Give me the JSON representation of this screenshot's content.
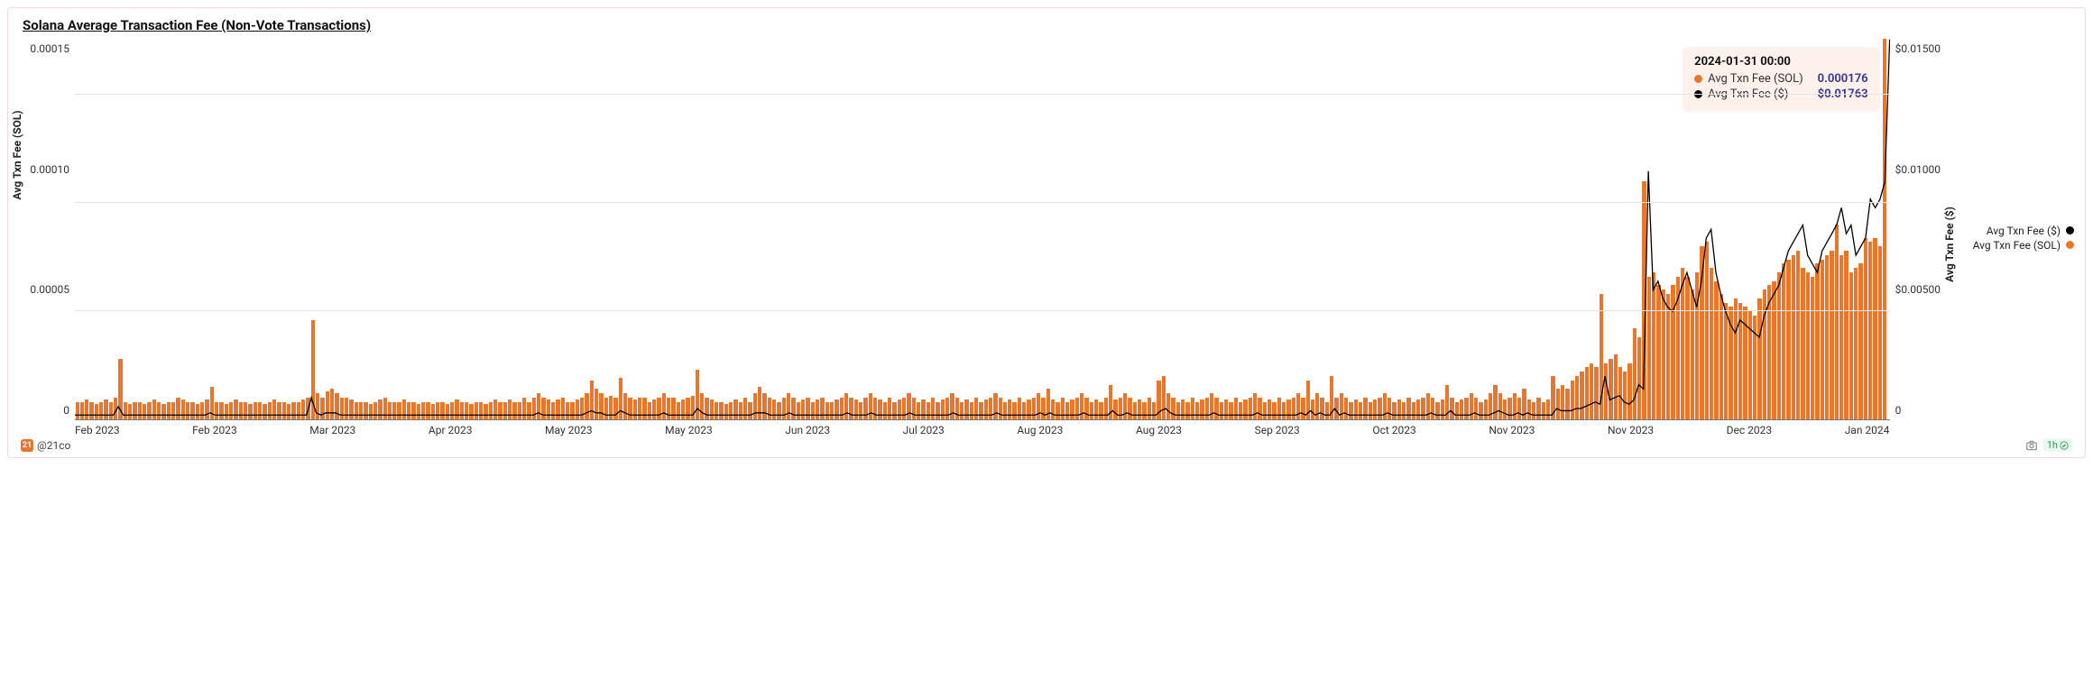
{
  "title": "Solana Average Transaction Fee (Non-Vote Transactions)",
  "author_handle": "@21co",
  "refresh_label": "1h",
  "chart": {
    "type": "bar+line",
    "background_color": "#ffffff",
    "grid_color": "#e5e5e5",
    "bar_color": "#e8762c",
    "line_color": "#000000",
    "line_width": 1.3,
    "left_axis": {
      "label": "Avg Txn Fee (SOL)",
      "min": 0,
      "max": 0.000176,
      "ticks": [
        0.00015,
        0.0001,
        5e-05,
        0
      ]
    },
    "right_axis": {
      "label": "Avg Txn Fee ($)",
      "min": 0,
      "max": 0.01763,
      "ticks": [
        "$0.01500",
        "$0.01000",
        "$0.00500",
        "0"
      ]
    },
    "x_ticks": [
      "Feb 2023",
      "Feb 2023",
      "Mar 2023",
      "Apr 2023",
      "May 2023",
      "May 2023",
      "Jun 2023",
      "Jul 2023",
      "Aug 2023",
      "Aug 2023",
      "Sep 2023",
      "Oct 2023",
      "Nov 2023",
      "Nov 2023",
      "Dec 2023",
      "Jan 2024"
    ],
    "series_bar_1e6": [
      8,
      8,
      9,
      8,
      7,
      8,
      9,
      8,
      10,
      28,
      8,
      7,
      8,
      8,
      7,
      8,
      9,
      8,
      7,
      8,
      8,
      10,
      9,
      8,
      8,
      7,
      8,
      9,
      15,
      8,
      8,
      7,
      8,
      9,
      8,
      8,
      7,
      8,
      8,
      7,
      8,
      9,
      8,
      8,
      7,
      8,
      8,
      9,
      10,
      46,
      12,
      10,
      13,
      14,
      12,
      10,
      10,
      9,
      8,
      8,
      8,
      7,
      8,
      9,
      10,
      8,
      8,
      8,
      9,
      8,
      8,
      7,
      8,
      8,
      7,
      8,
      8,
      7,
      8,
      9,
      8,
      8,
      7,
      8,
      8,
      7,
      8,
      9,
      8,
      8,
      9,
      8,
      8,
      10,
      8,
      10,
      12,
      10,
      9,
      8,
      9,
      10,
      8,
      8,
      9,
      10,
      12,
      18,
      14,
      12,
      10,
      11,
      10,
      19,
      12,
      10,
      9,
      10,
      10,
      8,
      9,
      10,
      12,
      10,
      10,
      8,
      9,
      10,
      11,
      23,
      12,
      10,
      9,
      8,
      8,
      7,
      8,
      9,
      8,
      10,
      8,
      12,
      15,
      12,
      10,
      9,
      8,
      10,
      12,
      10,
      8,
      9,
      10,
      8,
      9,
      10,
      8,
      8,
      9,
      10,
      12,
      10,
      9,
      8,
      10,
      12,
      10,
      9,
      8,
      10,
      8,
      9,
      10,
      12,
      10,
      8,
      9,
      8,
      10,
      8,
      9,
      10,
      12,
      10,
      8,
      9,
      8,
      10,
      8,
      9,
      10,
      12,
      10,
      8,
      9,
      8,
      10,
      8,
      9,
      10,
      12,
      10,
      14,
      9,
      8,
      10,
      8,
      9,
      10,
      12,
      10,
      8,
      9,
      8,
      10,
      16,
      9,
      10,
      12,
      10,
      8,
      9,
      8,
      10,
      8,
      18,
      20,
      12,
      10,
      8,
      9,
      8,
      10,
      8,
      9,
      10,
      12,
      10,
      8,
      9,
      8,
      10,
      8,
      9,
      10,
      12,
      10,
      8,
      9,
      8,
      10,
      8,
      9,
      10,
      12,
      10,
      18,
      9,
      12,
      10,
      8,
      20,
      10,
      12,
      10,
      8,
      9,
      8,
      10,
      8,
      9,
      10,
      12,
      10,
      8,
      9,
      8,
      10,
      8,
      9,
      10,
      12,
      10,
      8,
      9,
      16,
      10,
      8,
      9,
      10,
      12,
      10,
      8,
      9,
      12,
      16,
      12,
      9,
      10,
      12,
      10,
      14,
      9,
      8,
      10,
      8,
      9,
      20,
      14,
      16,
      14,
      18,
      20,
      22,
      24,
      26,
      24,
      58,
      26,
      28,
      30,
      24,
      22,
      26,
      42,
      38,
      110,
      66,
      68,
      62,
      60,
      58,
      62,
      66,
      70,
      66,
      60,
      68,
      80,
      82,
      70,
      64,
      58,
      54,
      52,
      56,
      54,
      52,
      50,
      48,
      56,
      60,
      62,
      64,
      68,
      72,
      74,
      76,
      78,
      70,
      68,
      66,
      72,
      74,
      76,
      78,
      90,
      76,
      78,
      68,
      70,
      72,
      84,
      82,
      84,
      80,
      176
    ],
    "series_line_usd_1e4": [
      2,
      2,
      2,
      2,
      2,
      2,
      2,
      2,
      2,
      6,
      2,
      2,
      2,
      2,
      2,
      2,
      2,
      2,
      2,
      2,
      2,
      2,
      2,
      2,
      2,
      2,
      2,
      2,
      3,
      2,
      2,
      2,
      2,
      2,
      2,
      2,
      2,
      2,
      2,
      2,
      2,
      2,
      2,
      2,
      2,
      2,
      2,
      2,
      2,
      10,
      3,
      2,
      3,
      3,
      3,
      2,
      2,
      2,
      2,
      2,
      2,
      2,
      2,
      2,
      2,
      2,
      2,
      2,
      2,
      2,
      2,
      2,
      2,
      2,
      2,
      2,
      2,
      2,
      2,
      2,
      2,
      2,
      2,
      2,
      2,
      2,
      2,
      2,
      2,
      2,
      2,
      2,
      2,
      2,
      2,
      2,
      3,
      2,
      2,
      2,
      2,
      2,
      2,
      2,
      2,
      2,
      3,
      4,
      3,
      3,
      2,
      2,
      2,
      4,
      3,
      2,
      2,
      2,
      2,
      2,
      2,
      2,
      3,
      2,
      2,
      2,
      2,
      2,
      2,
      5,
      3,
      2,
      2,
      2,
      2,
      2,
      2,
      2,
      2,
      2,
      2,
      3,
      3,
      3,
      2,
      2,
      2,
      2,
      3,
      2,
      2,
      2,
      2,
      2,
      2,
      2,
      2,
      2,
      2,
      2,
      3,
      2,
      2,
      2,
      2,
      3,
      2,
      2,
      2,
      2,
      2,
      2,
      2,
      3,
      2,
      2,
      2,
      2,
      2,
      2,
      2,
      2,
      3,
      2,
      2,
      2,
      2,
      2,
      2,
      2,
      2,
      3,
      2,
      2,
      2,
      2,
      2,
      2,
      2,
      2,
      3,
      2,
      3,
      2,
      2,
      2,
      2,
      2,
      2,
      3,
      2,
      2,
      2,
      2,
      2,
      4,
      2,
      2,
      3,
      2,
      2,
      2,
      2,
      2,
      2,
      4,
      5,
      3,
      2,
      2,
      2,
      2,
      2,
      2,
      2,
      2,
      3,
      2,
      2,
      2,
      2,
      2,
      2,
      2,
      2,
      3,
      2,
      2,
      2,
      2,
      2,
      2,
      2,
      2,
      3,
      2,
      4,
      2,
      3,
      2,
      2,
      5,
      2,
      3,
      2,
      2,
      2,
      2,
      2,
      2,
      2,
      2,
      3,
      2,
      2,
      2,
      2,
      2,
      2,
      2,
      2,
      3,
      2,
      2,
      2,
      4,
      2,
      2,
      2,
      2,
      3,
      2,
      2,
      2,
      3,
      4,
      3,
      2,
      2,
      3,
      2,
      3,
      2,
      2,
      2,
      2,
      2,
      5,
      4,
      4,
      4,
      5,
      5,
      6,
      7,
      8,
      7,
      20,
      9,
      10,
      11,
      8,
      7,
      9,
      16,
      14,
      115,
      60,
      64,
      56,
      52,
      50,
      55,
      62,
      68,
      60,
      52,
      64,
      84,
      88,
      68,
      58,
      50,
      44,
      40,
      46,
      44,
      42,
      40,
      38,
      48,
      54,
      58,
      62,
      70,
      78,
      82,
      86,
      90,
      76,
      72,
      68,
      78,
      82,
      86,
      90,
      98,
      86,
      90,
      76,
      80,
      84,
      102,
      98,
      102,
      110,
      176
    ]
  },
  "tooltip": {
    "date": "2024-01-31 00:00",
    "rows": [
      {
        "label": "Avg Txn Fee (SOL)",
        "value": "0.000176",
        "dot_color": "#e8762c"
      },
      {
        "label": "Avg Txn Fee ($)",
        "value": "$0.01763",
        "dot_color": "#000000"
      }
    ]
  },
  "legend": [
    {
      "label": "Avg Txn Fee ($)",
      "color": "#000000"
    },
    {
      "label": "Avg Txn Fee (SOL)",
      "color": "#e8762c"
    }
  ]
}
